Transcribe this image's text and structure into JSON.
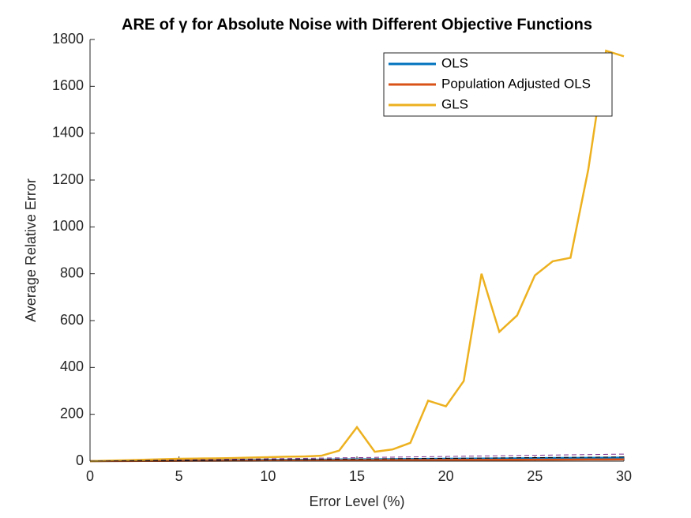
{
  "chart_data": {
    "type": "line",
    "title": "ARE of γ for Absolute Noise with Different Objective Functions",
    "xlabel": "Error Level (%)",
    "ylabel": "Average Relative Error",
    "x": [
      0,
      1,
      2,
      3,
      4,
      5,
      6,
      7,
      8,
      9,
      10,
      11,
      12,
      13,
      14,
      15,
      16,
      17,
      18,
      19,
      20,
      21,
      22,
      23,
      24,
      25,
      26,
      27,
      28,
      29,
      30
    ],
    "series": [
      {
        "name": "OLS",
        "color": "#0072bd",
        "values": [
          0,
          0.5,
          1,
          1.5,
          2,
          2.5,
          3,
          3.5,
          4,
          4.5,
          5,
          5.5,
          6,
          6.5,
          7,
          7.5,
          8,
          8.5,
          9,
          9.5,
          10,
          10.5,
          11,
          11.5,
          12,
          12.5,
          13,
          13.5,
          14,
          14.5,
          15
        ]
      },
      {
        "name": "Population Adjusted OLS",
        "color": "#d95319",
        "values": [
          0,
          0.3,
          0.5,
          0.8,
          1,
          1.3,
          1.5,
          1.8,
          2,
          2.3,
          2.5,
          2.8,
          3,
          3.3,
          3.5,
          3.8,
          4,
          4.3,
          4.5,
          4.8,
          5,
          5.3,
          5.5,
          5.8,
          6,
          6.3,
          6.5,
          6.8,
          7,
          7.3,
          7.5
        ]
      },
      {
        "name": "GLS",
        "color": "#edb120",
        "values": [
          0,
          2,
          4,
          6,
          8,
          10,
          11,
          12,
          13,
          15,
          17,
          19,
          20,
          23,
          45,
          145,
          40,
          50,
          78,
          258,
          234,
          342,
          800,
          552,
          622,
          793,
          853,
          868,
          1245,
          1752,
          1728
        ]
      },
      {
        "color": "#7e2f8e",
        "dash": true,
        "values": [
          0,
          1,
          2,
          3,
          4,
          5,
          6,
          7,
          8,
          9,
          10,
          11,
          12,
          13,
          14,
          15,
          16,
          17,
          18,
          19,
          20,
          21,
          22,
          23,
          24,
          25,
          26,
          27,
          28,
          29,
          30
        ]
      },
      {
        "color": "#000000",
        "dash": true,
        "values": [
          0,
          0.6,
          1.2,
          1.8,
          2.4,
          3,
          3.6,
          4.2,
          4.8,
          5.4,
          6,
          6.6,
          7.2,
          7.8,
          8.4,
          9,
          9.6,
          10.2,
          10.8,
          11.4,
          12,
          12.6,
          13.2,
          13.8,
          14.4,
          15,
          15.6,
          16.2,
          16.8,
          17.4,
          18
        ]
      }
    ],
    "xlim": [
      0,
      30
    ],
    "xticks": [
      0,
      5,
      10,
      15,
      20,
      25,
      30
    ],
    "ylim": [
      0,
      1800
    ],
    "yticks": [
      0,
      200,
      400,
      600,
      800,
      1000,
      1200,
      1400,
      1600,
      1800
    ],
    "legend": "top-right"
  }
}
